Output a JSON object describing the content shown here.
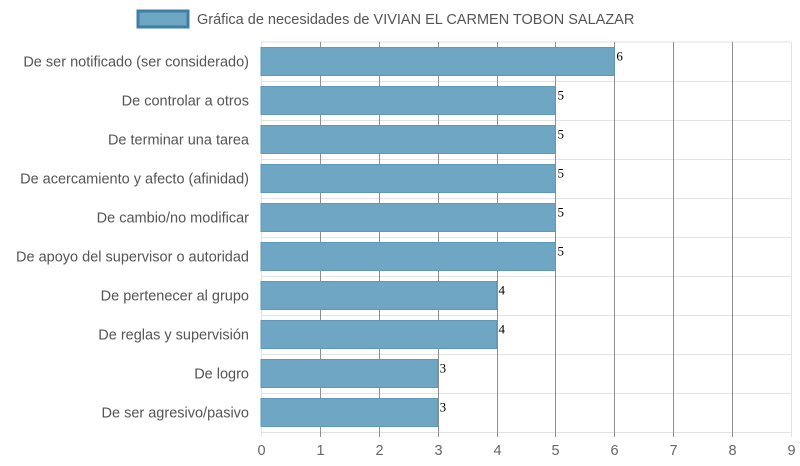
{
  "chart_data": {
    "type": "bar",
    "orientation": "horizontal",
    "categories": [
      "De ser notificado (ser considerado)",
      "De controlar a otros",
      "De terminar una tarea",
      "De acercamiento y afecto (afinidad)",
      "De cambio/no modificar",
      "De apoyo del supervisor o autoridad",
      "De pertenecer al grupo",
      "De reglas y supervisión",
      "De logro",
      "De ser agresivo/pasivo"
    ],
    "series": [
      {
        "name": "Gráfica de necesidades de VIVIAN EL CARMEN TOBON SALAZAR",
        "values": [
          6,
          5,
          5,
          5,
          5,
          5,
          4,
          4,
          3,
          3
        ]
      }
    ],
    "xlim": [
      0,
      9
    ],
    "xticks": [
      "0",
      "1",
      "2",
      "3",
      "4",
      "5",
      "6",
      "7",
      "8",
      "9"
    ],
    "grid": true,
    "legend_position": "top",
    "colors": {
      "bar_fill": "#6ea6c4",
      "bar_stroke": "#5f98b8",
      "legend_stroke": "#3f7fa6",
      "grid": "#e2e2e2",
      "major_grid": "#8f8f8f"
    }
  }
}
